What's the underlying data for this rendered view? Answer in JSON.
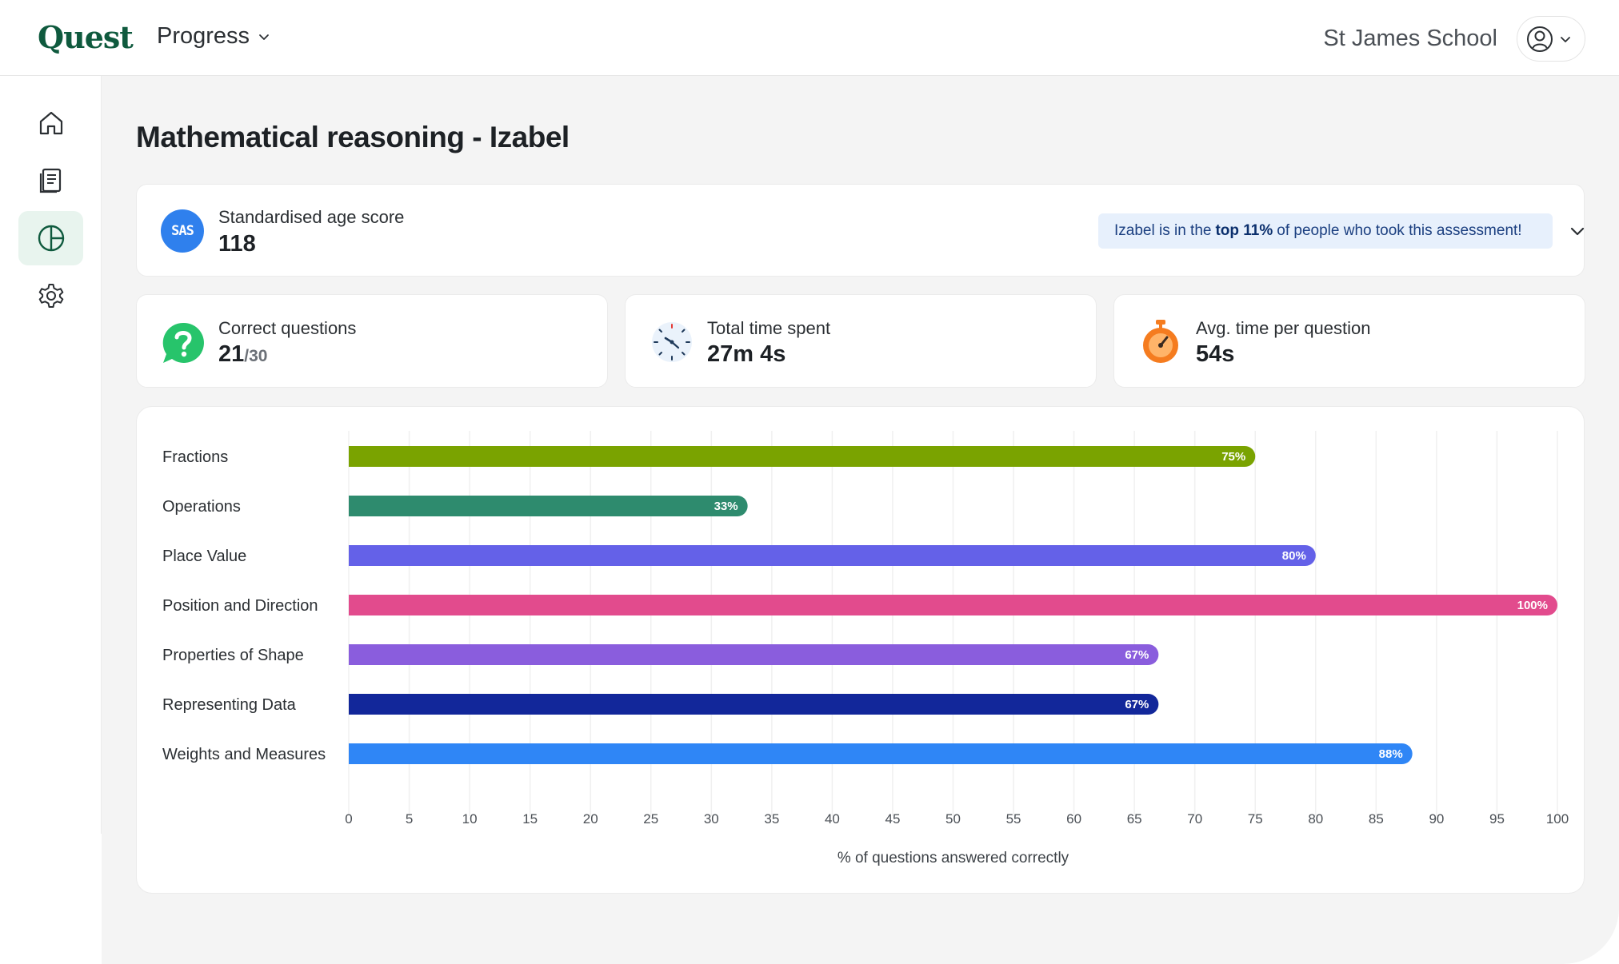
{
  "header": {
    "logo": "Quest",
    "nav_label": "Progress",
    "school": "St James School"
  },
  "sidebar": {
    "items": [
      {
        "name": "home",
        "icon": "home-icon"
      },
      {
        "name": "reports",
        "icon": "document-icon"
      },
      {
        "name": "progress",
        "icon": "pie-chart-icon",
        "active": true
      },
      {
        "name": "settings",
        "icon": "gear-icon"
      }
    ]
  },
  "page": {
    "title": "Mathematical reasoning - Izabel"
  },
  "sas": {
    "badge": "SAS",
    "label": "Standardised age score",
    "value": "118",
    "message_prefix": "Izabel is in the",
    "message_highlight": "top 11%",
    "message_suffix": "of people who took this assessment!"
  },
  "stats": {
    "correct": {
      "label": "Correct questions",
      "value": "21",
      "denominator": "/30"
    },
    "time": {
      "label": "Total time spent",
      "value": "27m 4s"
    },
    "avg": {
      "label": "Avg. time per question",
      "value": "54s"
    }
  },
  "colors": {
    "brand": "#0f5a3e",
    "sas_badge": "#2f80ed",
    "correct_icon": "#27c46b",
    "timer_icon": "#f57c1f"
  },
  "chart_data": {
    "type": "bar",
    "orientation": "horizontal",
    "categories": [
      "Fractions",
      "Operations",
      "Place Value",
      "Position and Direction",
      "Properties of Shape",
      "Representing Data",
      "Weights and Measures"
    ],
    "values": [
      75,
      33,
      80,
      100,
      67,
      67,
      88
    ],
    "value_labels": [
      "75%",
      "33%",
      "80%",
      "100%",
      "67%",
      "67%",
      "88%"
    ],
    "colors": [
      "#7aa300",
      "#2e8b6e",
      "#6461e8",
      "#e24b8d",
      "#8a5ddd",
      "#12279a",
      "#2f86f6"
    ],
    "xlim": [
      0,
      100
    ],
    "xticks": [
      0,
      5,
      10,
      15,
      20,
      25,
      30,
      35,
      40,
      45,
      50,
      55,
      60,
      65,
      70,
      75,
      80,
      85,
      90,
      95,
      100
    ],
    "xlabel": "% of questions answered correctly",
    "grid": true
  }
}
